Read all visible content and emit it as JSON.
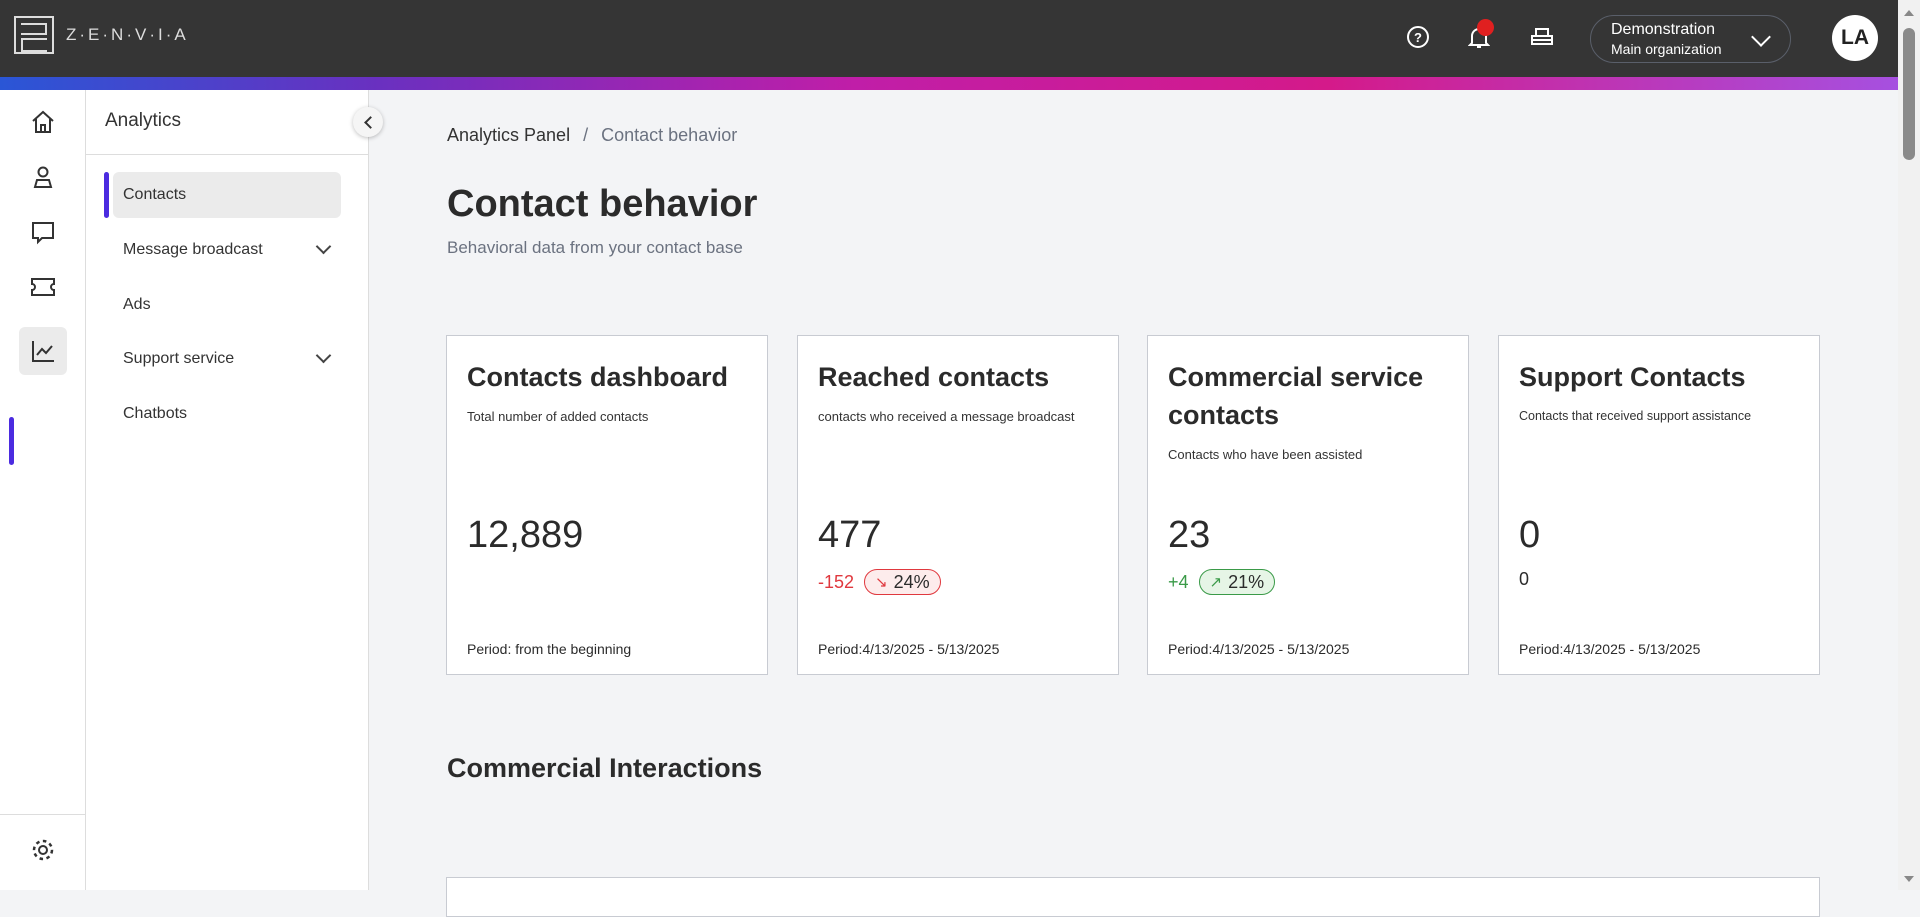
{
  "header": {
    "brand": "Z·E·N·V·I·A",
    "org_name": "Demonstration",
    "org_sub": "Main organization",
    "avatar": "LA",
    "help": "?"
  },
  "sidebar": {
    "title": "Analytics",
    "items": [
      {
        "label": "Contacts",
        "active": true
      },
      {
        "label": "Message broadcast",
        "expandable": true
      },
      {
        "label": "Ads"
      },
      {
        "label": "Support service",
        "expandable": true
      },
      {
        "label": "Chatbots"
      }
    ]
  },
  "breadcrumb": {
    "parent": "Analytics Panel",
    "sep": "/",
    "current": "Contact behavior"
  },
  "page": {
    "title": "Contact behavior",
    "subtitle": "Behavioral data from your contact base"
  },
  "cards": [
    {
      "title": "Contacts dashboard",
      "desc": "Total number of added contacts",
      "value": "12,889",
      "period": "Period: from the beginning"
    },
    {
      "title": "Reached contacts",
      "desc": "contacts who received a message broadcast",
      "value": "477",
      "delta": "-152",
      "pct": "24%",
      "trend": "down",
      "period": "Period:4/13/2025 - 5/13/2025"
    },
    {
      "title": "Commercial service contacts",
      "desc": "Contacts who have been assisted",
      "value": "23",
      "delta": "+4",
      "pct": "21%",
      "trend": "up",
      "period": "Period:4/13/2025 - 5/13/2025"
    },
    {
      "title": "Support Contacts",
      "desc": "Contacts that received support assistance",
      "value": "0",
      "delta": "0",
      "period": "Period:4/13/2025 - 5/13/2025"
    }
  ],
  "section": {
    "title": "Commercial Interactions"
  },
  "colors": {
    "accent": "#4b2be0",
    "negative": "#e0383e",
    "positive": "#3a9a48",
    "topbar": "#353535"
  }
}
